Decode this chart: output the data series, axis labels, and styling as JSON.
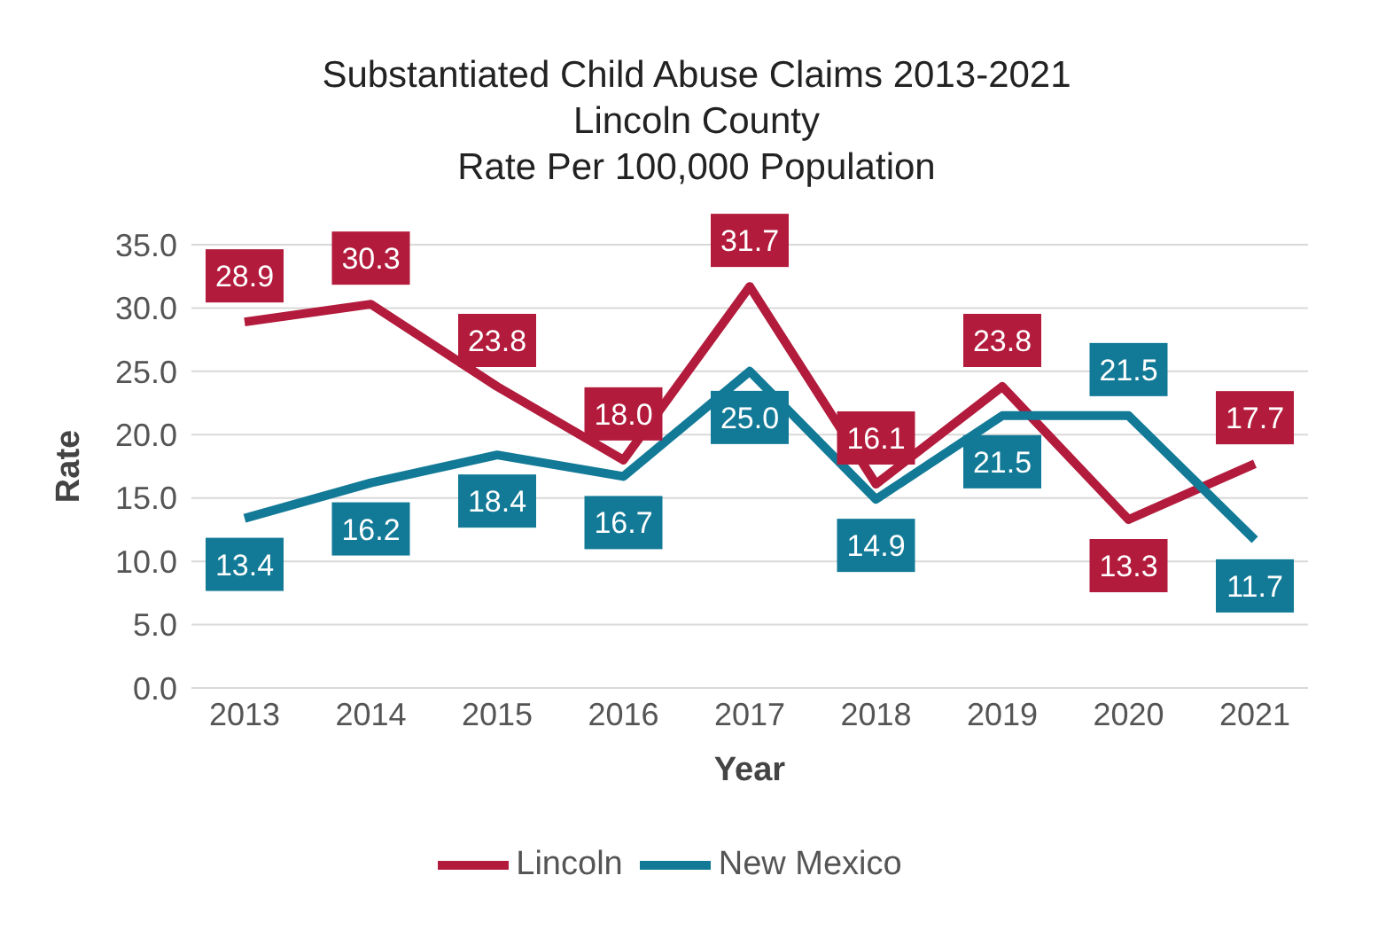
{
  "chart_data": {
    "type": "line",
    "title": "Substantiated Child Abuse Claims 2013-2021\nLincoln County\nRate Per 100,000 Population",
    "xlabel": "Year",
    "ylabel": "Rate",
    "categories": [
      "2013",
      "2014",
      "2015",
      "2016",
      "2017",
      "2018",
      "2019",
      "2020",
      "2021"
    ],
    "series": [
      {
        "name": "Lincoln",
        "color": "#b31b3c",
        "values": [
          28.9,
          30.3,
          23.8,
          18.0,
          31.7,
          16.1,
          23.8,
          13.3,
          17.7
        ],
        "value_labels": [
          "28.9",
          "30.3",
          "23.8",
          "18.0",
          "31.7",
          "16.1",
          "23.8",
          "13.3",
          "17.7"
        ]
      },
      {
        "name": "New Mexico",
        "color": "#127a97",
        "values": [
          13.4,
          16.2,
          18.4,
          16.7,
          25.0,
          14.9,
          21.5,
          21.5,
          11.7
        ],
        "value_labels": [
          "13.4",
          "16.2",
          "18.4",
          "16.7",
          "25.0",
          "14.9",
          "21.5",
          "21.5",
          "11.7"
        ]
      }
    ],
    "ylim": [
      0,
      35
    ],
    "yticks": [
      {
        "value": 0,
        "label": "0.0"
      },
      {
        "value": 5,
        "label": "5.0"
      },
      {
        "value": 10,
        "label": "10.0"
      },
      {
        "value": 15,
        "label": "15.0"
      },
      {
        "value": 20,
        "label": "20.0"
      },
      {
        "value": 25,
        "label": "25.0"
      },
      {
        "value": 30,
        "label": "30.0"
      },
      {
        "value": 35,
        "label": "35.0"
      }
    ],
    "grid": "y",
    "legend": "bottom",
    "marker": "none",
    "line_style": "solid"
  }
}
